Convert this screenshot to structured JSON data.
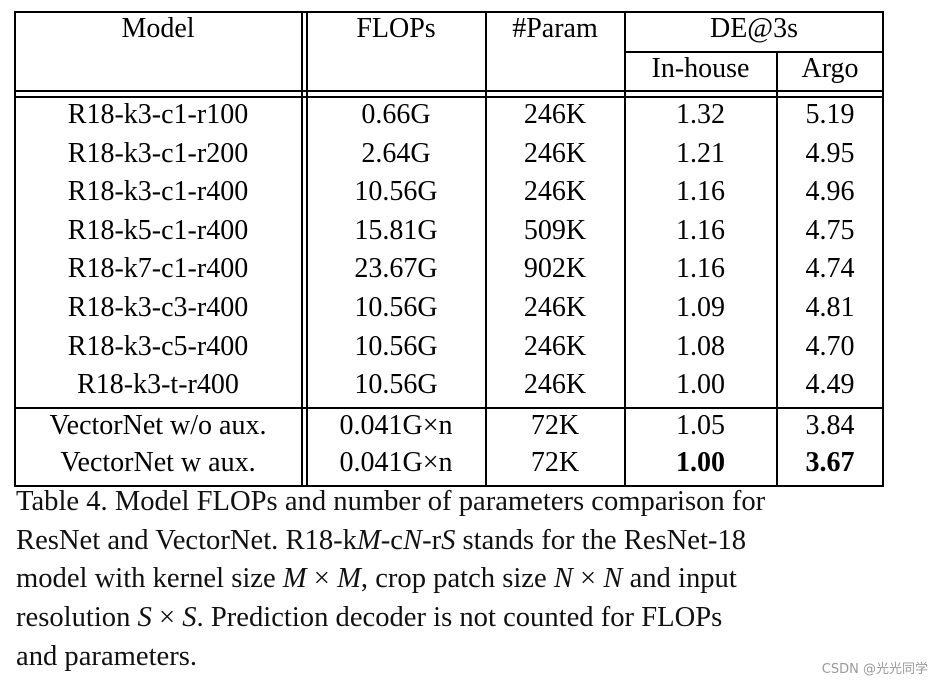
{
  "table": {
    "header": {
      "model": "Model",
      "flops": "FLOPs",
      "params": "#Param",
      "de_group": "DE@3s",
      "inhouse": "In-house",
      "argo": "Argo"
    },
    "rows": [
      {
        "model": "R18-k3-c1-r100",
        "flops": "0.66G",
        "params": "246K",
        "inhouse": "1.32",
        "argo": "5.19"
      },
      {
        "model": "R18-k3-c1-r200",
        "flops": "2.64G",
        "params": "246K",
        "inhouse": "1.21",
        "argo": "4.95"
      },
      {
        "model": "R18-k3-c1-r400",
        "flops": "10.56G",
        "params": "246K",
        "inhouse": "1.16",
        "argo": "4.96"
      },
      {
        "model": "R18-k5-c1-r400",
        "flops": "15.81G",
        "params": "509K",
        "inhouse": "1.16",
        "argo": "4.75"
      },
      {
        "model": "R18-k7-c1-r400",
        "flops": "23.67G",
        "params": "902K",
        "inhouse": "1.16",
        "argo": "4.74"
      },
      {
        "model": "R18-k3-c3-r400",
        "flops": "10.56G",
        "params": "246K",
        "inhouse": "1.09",
        "argo": "4.81"
      },
      {
        "model": "R18-k3-c5-r400",
        "flops": "10.56G",
        "params": "246K",
        "inhouse": "1.08",
        "argo": "4.70"
      },
      {
        "model": "R18-k3-t-r400",
        "flops": "10.56G",
        "params": "246K",
        "inhouse": "1.00",
        "argo": "4.49"
      }
    ],
    "vector_rows": [
      {
        "model": "VectorNet w/o aux.",
        "flops": "0.041G×n",
        "params": "72K",
        "inhouse": "1.05",
        "argo": "3.84",
        "bold": false
      },
      {
        "model": "VectorNet w aux.",
        "flops": "0.041G×n",
        "params": "72K",
        "inhouse": "1.00",
        "argo": "3.67",
        "bold": true
      }
    ]
  },
  "caption": {
    "line1": "Table 4. Model FLOPs and number of parameters comparison for",
    "line2_a": "ResNet and VectorNet. R18-k",
    "line2_M": "M",
    "line2_b": "-c",
    "line2_N": "N",
    "line2_c": "-r",
    "line2_S": "S",
    "line2_d": " stands for the ResNet-18",
    "line3_a": "model with kernel size ",
    "line3_m1": "M",
    "line3_x1": " × ",
    "line3_m2": "M",
    "line3_b": ", crop patch size ",
    "line3_n1": "N",
    "line3_x2": " × ",
    "line3_n2": "N",
    "line3_c": " and input",
    "line4_a": "resolution ",
    "line4_s1": "S",
    "line4_x": " × ",
    "line4_s2": "S",
    "line4_b": ".  Prediction decoder is not counted for FLOPs",
    "line5": "and parameters."
  },
  "watermark": "CSDN @光光同学"
}
